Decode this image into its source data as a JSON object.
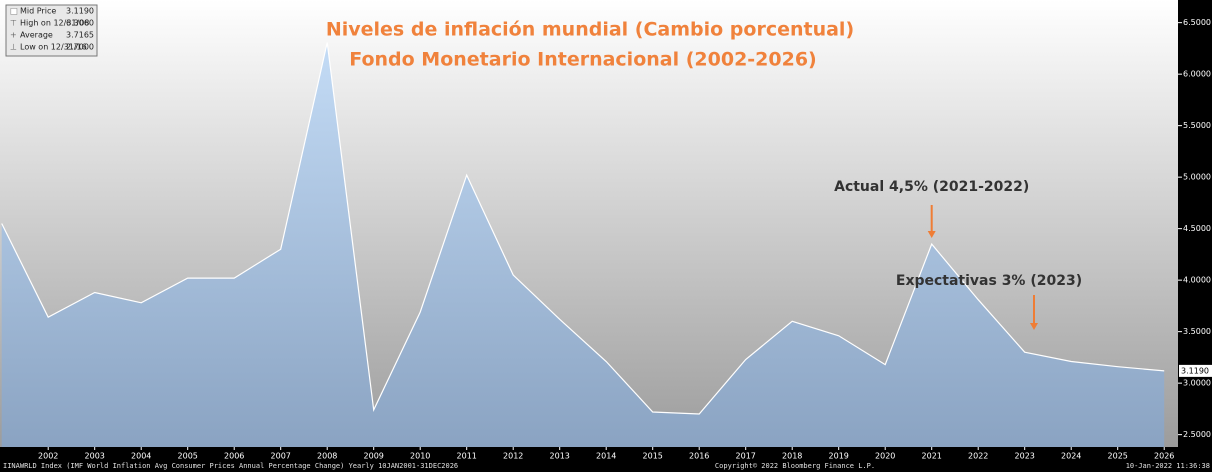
{
  "chart_data": {
    "type": "area",
    "title": "Niveles de inflación mundial (Cambio porcentual)",
    "subtitle": "Fondo Monetario Internacional (2002-2026)",
    "x": [
      2001,
      2002,
      2003,
      2004,
      2005,
      2006,
      2007,
      2008,
      2009,
      2010,
      2011,
      2012,
      2013,
      2014,
      2015,
      2016,
      2017,
      2018,
      2019,
      2020,
      2021,
      2022,
      2023,
      2024,
      2025,
      2026
    ],
    "values": [
      4.55,
      3.64,
      3.88,
      3.78,
      4.02,
      4.02,
      4.3,
      6.306,
      2.74,
      3.69,
      5.02,
      4.05,
      3.62,
      3.21,
      2.72,
      2.7,
      3.23,
      3.6,
      3.46,
      3.18,
      4.35,
      3.81,
      3.3,
      3.21,
      3.16,
      3.119
    ],
    "color": "#a9c4e4",
    "xlim": [
      2001,
      2026
    ],
    "xticks": [
      2002,
      2003,
      2004,
      2005,
      2006,
      2007,
      2008,
      2009,
      2010,
      2011,
      2012,
      2013,
      2014,
      2015,
      2016,
      2017,
      2018,
      2019,
      2020,
      2021,
      2022,
      2023,
      2024,
      2025,
      2026
    ],
    "ylim": [
      2.38,
      6.72
    ],
    "yticks": [
      {
        "value": 2.5,
        "label": "2.5000"
      },
      {
        "value": 3.0,
        "label": "3.0000"
      },
      {
        "value": 3.5,
        "label": "3.5000"
      },
      {
        "value": 4.0,
        "label": "4.0000"
      },
      {
        "value": 4.5,
        "label": "4.5000"
      },
      {
        "value": 5.0,
        "label": "5.0000"
      },
      {
        "value": 5.5,
        "label": "5.5000"
      },
      {
        "value": 6.0,
        "label": "6.0000"
      },
      {
        "value": 6.5,
        "label": "6.5000"
      }
    ],
    "last_price_label": "3.1190",
    "legend": [
      {
        "label": "Mid Price",
        "value": "3.1190"
      },
      {
        "label": "High on 12/31/08",
        "value": "6.3060"
      },
      {
        "label": "Average",
        "value": "3.7165"
      },
      {
        "label": "Low on 12/31/16",
        "value": "2.7000"
      }
    ],
    "annotations": [
      {
        "text": "Actual 4,5% (2021-2022)",
        "x": 2021
      },
      {
        "text": "Expectativas 3% (2023)",
        "x": 2023.2
      }
    ],
    "footer": {
      "left": "IINAWRLD Index (IMF World Inflation Avg Consumer Prices Annual Percentage Change) Yearly 10JAN2001-31DEC2026",
      "center": "Copyright© 2022 Bloomberg Finance L.P.",
      "right": "10-Jan-2022 11:36:38"
    }
  }
}
